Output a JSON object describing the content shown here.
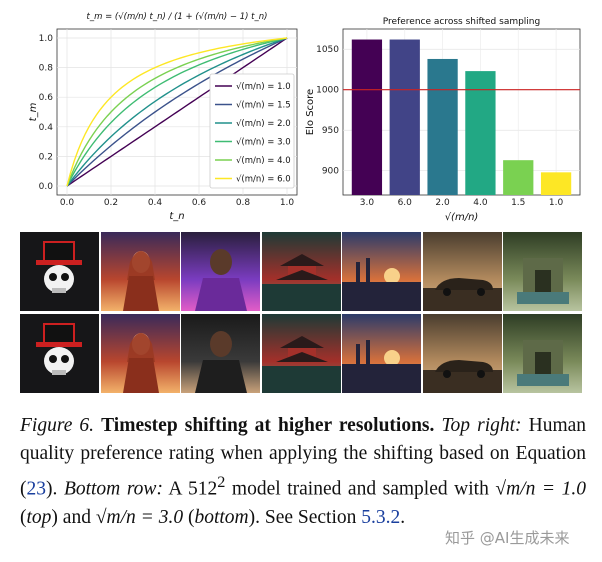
{
  "chart_data": [
    {
      "type": "line",
      "title": "t_m = (√(m/n) t_n) / (1 + (√(m/n) − 1) t_n)",
      "xlabel": "t_n",
      "ylabel": "t_m",
      "xlim": [
        0,
        1
      ],
      "ylim": [
        0,
        1
      ],
      "x_ticks": [
        "0.0",
        "0.2",
        "0.4",
        "0.6",
        "0.8",
        "1.0"
      ],
      "y_ticks": [
        "0.0",
        "0.2",
        "0.4",
        "0.6",
        "0.8",
        "1.0"
      ],
      "grid": true,
      "legend_position": "bottom-right",
      "series": [
        {
          "name": "√(m/n) = 1.0",
          "shift": 1.0,
          "color": "#440154"
        },
        {
          "name": "√(m/n) = 1.5",
          "shift": 1.5,
          "color": "#3b528b"
        },
        {
          "name": "√(m/n) = 2.0",
          "shift": 2.0,
          "color": "#21918c"
        },
        {
          "name": "√(m/n) = 3.0",
          "shift": 3.0,
          "color": "#3fbc73"
        },
        {
          "name": "√(m/n) = 4.0",
          "shift": 4.0,
          "color": "#7ad151"
        },
        {
          "name": "√(m/n) = 6.0",
          "shift": 6.0,
          "color": "#fde725"
        }
      ]
    },
    {
      "type": "bar",
      "title": "Preference across shifted sampling",
      "xlabel": "√(m/n)",
      "ylabel": "Elo Score",
      "categories": [
        "3.0",
        "6.0",
        "2.0",
        "4.0",
        "1.5",
        "1.0"
      ],
      "values": [
        1062,
        1062,
        1038,
        1023,
        913,
        898
      ],
      "colors": [
        "#440154",
        "#414487",
        "#2a788e",
        "#22a884",
        "#7ad151",
        "#fde725"
      ],
      "ylim": [
        870,
        1075
      ],
      "y_ticks": [
        900,
        950,
        1000,
        1050
      ],
      "reference_line": {
        "value": 1000,
        "color": "#cc2222"
      },
      "grid": true
    }
  ],
  "thumbnails": {
    "top_row": [
      "skull-top-hat-logo",
      "woman-red-coat-times-square",
      "man-neon-jacket",
      "red-pagoda-lake",
      "industrial-sunset",
      "vintage-car-swamp",
      "jungle-temple"
    ],
    "bottom_row": [
      "skull-top-hat-logo",
      "woman-red-coat-times-square",
      "man-leather-jacket",
      "red-pagoda-lake",
      "industrial-sunset",
      "vintage-car-swamp",
      "jungle-temple"
    ]
  },
  "caption": {
    "fig_label": "Figure 6.",
    "bold_title": "Timestep shifting at higher resolutions.",
    "top_right_label": "Top right:",
    "text1": "Human quality preference rating when applying the shifting based on Equation (",
    "eq_ref": "23",
    "text2": ").",
    "bottom_row_label": "Bottom row:",
    "text3": "A 512",
    "sup": "2",
    "text4": "model trained and sampled with",
    "math_top": "√m/n = 1.0",
    "top_label": "top",
    "and_text": "and",
    "math_bottom": "√m/n = 3.0",
    "bottom_label": "bottom",
    "see_text": "See Section",
    "section_ref": "5.3.2",
    "end": "."
  },
  "watermark": "知乎 @AI生成未来"
}
